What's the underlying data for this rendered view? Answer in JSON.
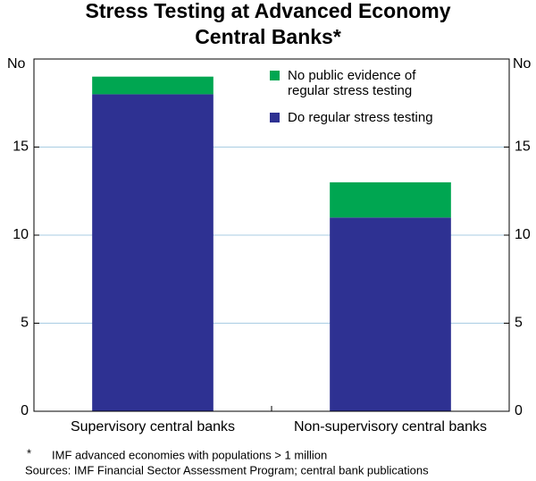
{
  "chart_data": {
    "type": "stacked_bar",
    "title": [
      "Stress Testing at Advanced Economy",
      "Central Banks*"
    ],
    "y_label": "No",
    "y2_label": "No",
    "categories": [
      "Supervisory central banks",
      "Non-supervisory central banks"
    ],
    "series": [
      {
        "name": "Do regular stress testing",
        "color": "#2e3192",
        "values": [
          18,
          11
        ]
      },
      {
        "name": "No public evidence of regular stress testing",
        "color": "#00a651",
        "values": [
          1,
          2
        ]
      }
    ],
    "ylim": [
      0,
      20
    ],
    "yticks": [
      0,
      5,
      10,
      15
    ],
    "y2lim": [
      0,
      20
    ],
    "y2ticks": [
      0,
      5,
      10,
      15
    ],
    "grid": true,
    "notes": [
      "IMF advanced economies with populations > 1 million",
      "Sources: IMF Financial Sector Assessment Program; central bank publications"
    ]
  }
}
